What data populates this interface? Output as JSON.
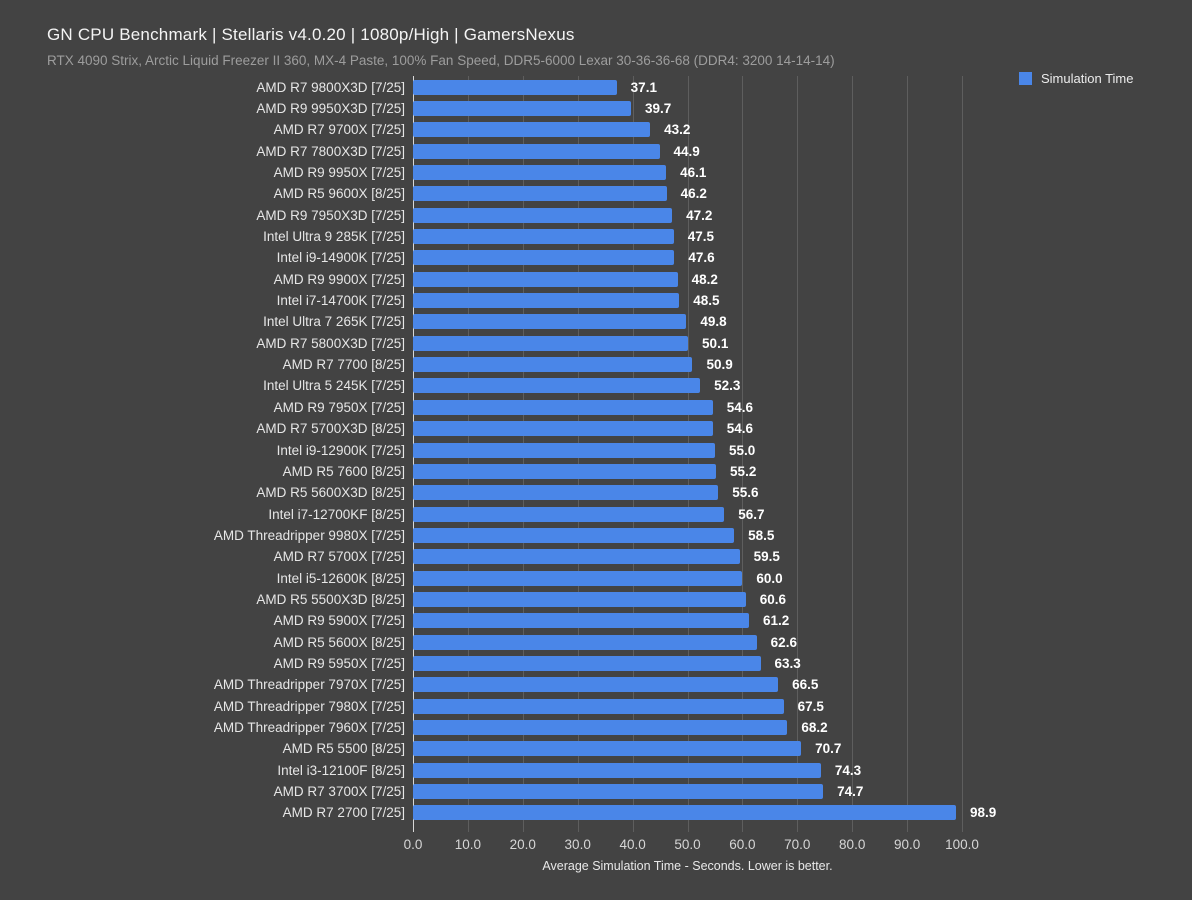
{
  "header": {
    "title": "GN CPU Benchmark | Stellaris v4.0.20 | 1080p/High | GamersNexus",
    "subtitle": "RTX 4090 Strix, Arctic Liquid Freezer II 360, MX-4 Paste, 100% Fan Speed, DDR5-6000 Lexar 30-36-36-68 (DDR4: 3200 14-14-14)"
  },
  "chart_data": {
    "type": "bar",
    "orientation": "horizontal",
    "title": "GN CPU Benchmark | Stellaris v4.0.20 | 1080p/High | GamersNexus",
    "subtitle": "RTX 4090 Strix, Arctic Liquid Freezer II 360, MX-4 Paste, 100% Fan Speed, DDR5-6000 Lexar 30-36-36-68 (DDR4: 3200 14-14-14)",
    "legend": {
      "label": "Simulation Time",
      "color": "#4a86e8",
      "position": "top-right"
    },
    "xlabel": "Average Simulation Time - Seconds. Lower is better.",
    "xlim": [
      0,
      100
    ],
    "xtick_step": 10,
    "grid": true,
    "sort": "ascending (lower is better)",
    "categories": [
      "AMD R7 9800X3D [7/25]",
      "AMD R9 9950X3D [7/25]",
      "AMD R7 9700X [7/25]",
      "AMD R7 7800X3D [7/25]",
      "AMD R9 9950X [7/25]",
      "AMD R5 9600X [8/25]",
      "AMD R9 7950X3D [7/25]",
      "Intel Ultra 9 285K [7/25]",
      "Intel i9-14900K [7/25]",
      "AMD R9 9900X [7/25]",
      "Intel i7-14700K [7/25]",
      "Intel Ultra 7 265K [7/25]",
      "AMD R7 5800X3D [7/25]",
      "AMD R7 7700 [8/25]",
      "Intel Ultra 5 245K [7/25]",
      "AMD R9 7950X [7/25]",
      "AMD R7 5700X3D [8/25]",
      "Intel i9-12900K [7/25]",
      "AMD R5 7600 [8/25]",
      "AMD R5 5600X3D [8/25]",
      "Intel i7-12700KF [8/25]",
      "AMD Threadripper 9980X [7/25]",
      "AMD R7 5700X [7/25]",
      "Intel i5-12600K [8/25]",
      "AMD R5 5500X3D [8/25]",
      "AMD R9 5900X [7/25]",
      "AMD R5 5600X [8/25]",
      "AMD R9 5950X [7/25]",
      "AMD Threadripper 7970X [7/25]",
      "AMD Threadripper 7980X [7/25]",
      "AMD Threadripper 7960X [7/25]",
      "AMD R5 5500 [8/25]",
      "Intel i3-12100F [8/25]",
      "AMD R7 3700X [7/25]",
      "AMD R7 2700 [7/25]"
    ],
    "values": [
      37.1,
      39.7,
      43.2,
      44.9,
      46.1,
      46.2,
      47.2,
      47.5,
      47.6,
      48.2,
      48.5,
      49.8,
      50.1,
      50.9,
      52.3,
      54.6,
      54.6,
      55.0,
      55.2,
      55.6,
      56.7,
      58.5,
      59.5,
      60.0,
      60.6,
      61.2,
      62.6,
      63.3,
      66.5,
      67.5,
      68.2,
      70.7,
      74.3,
      74.7,
      98.9
    ],
    "colors": {
      "bar": "#4a86e8",
      "background": "#434343",
      "gridline": "#5e5e5e",
      "zero_axis_line": "#d8d8d8",
      "title_text": "#f4f4f4",
      "subtitle_text": "#9d9d9d",
      "category_text": "#e6e6e6",
      "value_text": "#ffffff",
      "tick_text": "#d6d6d6"
    }
  }
}
